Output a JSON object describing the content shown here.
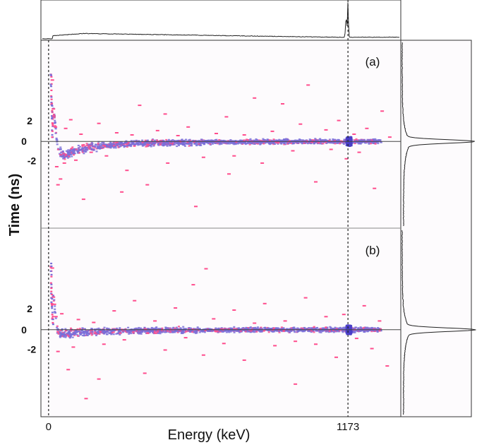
{
  "chart_data": {
    "type": "scatter",
    "title": "",
    "xlabel": "Energy (keV)",
    "ylabel": "Time (ns)",
    "xlim": [
      -30,
      1380
    ],
    "x_ticks": [
      0,
      1173
    ],
    "y_ticks": [
      2,
      0,
      -2
    ],
    "reference_lines": {
      "energy_keV": 1173,
      "time_ns": 0
    },
    "colors": {
      "points": "#7a6fd8",
      "outliers": "#ff4d8d",
      "background": "#fdfbfd",
      "lines": "#222222"
    },
    "panels": [
      {
        "label": "(a)",
        "ylim": [
          -12,
          14
        ],
        "band": [
          [
            10,
            6
          ],
          [
            20,
            3
          ],
          [
            30,
            -0.4
          ],
          [
            40,
            -1.5
          ],
          [
            55,
            -1.9
          ],
          [
            70,
            -1.8
          ],
          [
            100,
            -1.3
          ],
          [
            150,
            -0.9
          ],
          [
            200,
            -0.6
          ],
          [
            300,
            -0.35
          ],
          [
            400,
            -0.2
          ],
          [
            600,
            -0.1
          ],
          [
            800,
            -0.05
          ],
          [
            1000,
            0
          ],
          [
            1173,
            0
          ],
          [
            1300,
            0
          ]
        ],
        "tail": [
          [
            5,
            9
          ],
          [
            6,
            7.5
          ],
          [
            7,
            6
          ],
          [
            8,
            5
          ],
          [
            9,
            4
          ],
          [
            10,
            3
          ],
          [
            11,
            2
          ],
          [
            12,
            1
          ]
        ],
        "outliers": [
          [
            8,
            8.5
          ],
          [
            12,
            4.5
          ],
          [
            14,
            3.5
          ],
          [
            20,
            2
          ],
          [
            25,
            -3.5
          ],
          [
            30,
            -6
          ],
          [
            40,
            -5.2
          ],
          [
            55,
            -3
          ],
          [
            60,
            1.8
          ],
          [
            80,
            3
          ],
          [
            100,
            -2.6
          ],
          [
            120,
            1
          ],
          [
            130,
            -8
          ],
          [
            160,
            -1.5
          ],
          [
            190,
            2.5
          ],
          [
            220,
            -2
          ],
          [
            260,
            1.2
          ],
          [
            300,
            -4
          ],
          [
            320,
            0.9
          ],
          [
            350,
            5
          ],
          [
            380,
            -6
          ],
          [
            420,
            1.5
          ],
          [
            460,
            -3
          ],
          [
            500,
            0.8
          ],
          [
            540,
            2
          ],
          [
            570,
            -9
          ],
          [
            600,
            -2.2
          ],
          [
            650,
            1.1
          ],
          [
            690,
            3.4
          ],
          [
            720,
            -2
          ],
          [
            760,
            0.9
          ],
          [
            800,
            6
          ],
          [
            830,
            -3
          ],
          [
            870,
            1.4
          ],
          [
            910,
            5.2
          ],
          [
            950,
            -1.3
          ],
          [
            980,
            2.4
          ],
          [
            1010,
            7.8
          ],
          [
            1040,
            -5.6
          ],
          [
            1080,
            1.6
          ],
          [
            1100,
            -1.1
          ],
          [
            1130,
            2.9
          ],
          [
            1160,
            -2.4
          ],
          [
            1190,
            1
          ],
          [
            1210,
            -1.5
          ],
          [
            1240,
            1.8
          ],
          [
            1270,
            -6.5
          ],
          [
            1300,
            4.2
          ],
          [
            1330,
            0.6
          ],
          [
            700,
            -4.5
          ],
          [
            450,
            3.8
          ],
          [
            280,
            -7
          ]
        ],
        "projection": "peak"
      },
      {
        "label": "(b)",
        "ylim": [
          -12,
          14
        ],
        "band": [
          [
            10,
            6
          ],
          [
            20,
            3
          ],
          [
            30,
            0
          ],
          [
            40,
            -0.5
          ],
          [
            55,
            -0.6
          ],
          [
            70,
            -0.5
          ],
          [
            100,
            -0.35
          ],
          [
            150,
            -0.25
          ],
          [
            200,
            -0.2
          ],
          [
            300,
            -0.15
          ],
          [
            400,
            -0.1
          ],
          [
            600,
            -0.05
          ],
          [
            800,
            0
          ],
          [
            1000,
            0
          ],
          [
            1173,
            0
          ],
          [
            1300,
            0
          ]
        ],
        "tail": [
          [
            5,
            9
          ],
          [
            6,
            7.5
          ],
          [
            7,
            6
          ],
          [
            8,
            5
          ],
          [
            9,
            4
          ],
          [
            10,
            3
          ],
          [
            11,
            2
          ],
          [
            12,
            1
          ]
        ],
        "outliers": [
          [
            8,
            8.5
          ],
          [
            12,
            4.5
          ],
          [
            16,
            3.5
          ],
          [
            22,
            1.8
          ],
          [
            30,
            -3
          ],
          [
            45,
            2.2
          ],
          [
            70,
            -5.5
          ],
          [
            90,
            -2.4
          ],
          [
            110,
            1.4
          ],
          [
            140,
            -9.5
          ],
          [
            170,
            1
          ],
          [
            210,
            -2
          ],
          [
            250,
            2.6
          ],
          [
            290,
            -1.4
          ],
          [
            330,
            4
          ],
          [
            370,
            -6
          ],
          [
            410,
            1.2
          ],
          [
            450,
            -2.8
          ],
          [
            490,
            3
          ],
          [
            530,
            -1.1
          ],
          [
            560,
            6.2
          ],
          [
            600,
            -3.5
          ],
          [
            640,
            1.5
          ],
          [
            680,
            -1.9
          ],
          [
            720,
            2.7
          ],
          [
            760,
            -4.2
          ],
          [
            800,
            0.9
          ],
          [
            840,
            3.6
          ],
          [
            880,
            -2.2
          ],
          [
            920,
            1.2
          ],
          [
            960,
            -1.6
          ],
          [
            1000,
            4.4
          ],
          [
            1040,
            -2
          ],
          [
            1080,
            1.8
          ],
          [
            1120,
            -3.8
          ],
          [
            1150,
            2.1
          ],
          [
            1200,
            -1.2
          ],
          [
            1230,
            3.3
          ],
          [
            1260,
            -2.6
          ],
          [
            1290,
            1.2
          ],
          [
            1320,
            -5
          ],
          [
            190,
            -6.8
          ],
          [
            610,
            8.4
          ],
          [
            960,
            -7.5
          ]
        ],
        "projection": "peak"
      }
    ],
    "energy_projection": {
      "level": 0.15,
      "peak_energy_keV": 1173,
      "peak_height": 1.0
    }
  },
  "panel_labels": {
    "a": "(a)",
    "b": "(b)"
  },
  "axes": {
    "ylabel": "Time (ns)",
    "xlabel": "Energy (keV)",
    "xtick_zero": "0",
    "xtick_peak": "1173",
    "ytick_a_pos": "2",
    "ytick_a_zero": "0",
    "ytick_a_neg": "-2",
    "ytick_b_pos": "2",
    "ytick_b_zero": "0",
    "ytick_b_neg": "-2"
  }
}
